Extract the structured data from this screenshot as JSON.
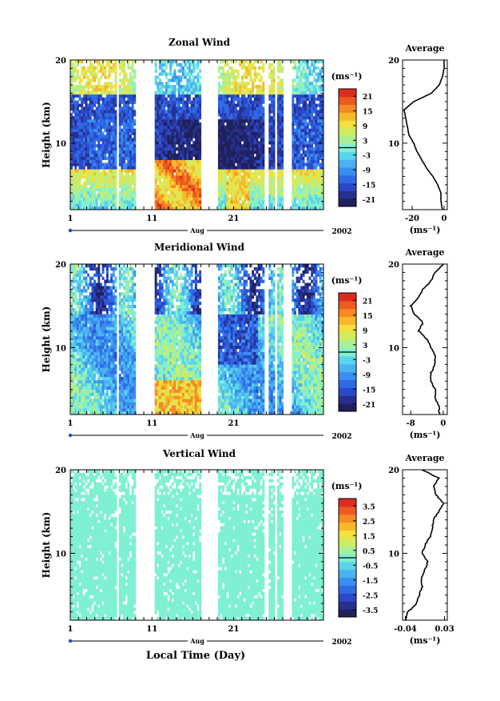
{
  "common": {
    "x_ticks": [
      "1",
      "11",
      "21"
    ],
    "month_label": "Aug",
    "year_label": "2002",
    "height_ticks": [
      "20",
      "10"
    ],
    "ylabel": "Height (km)",
    "unit_label": "(ms⁻¹)",
    "avg_title": "Average",
    "xlabel_bottom": "Local Time (Day)"
  },
  "colors": {
    "colormap": [
      "#20205a",
      "#26308f",
      "#2a48c8",
      "#2e6ae6",
      "#3a8ef0",
      "#4ab2f0",
      "#5ad4ec",
      "#7ff0d2",
      "#a8f09a",
      "#d0ec60",
      "#f0e040",
      "#f8b82c",
      "#f48a24",
      "#ec5a20",
      "#dc2c20"
    ],
    "panel_background": "#ffffff",
    "contour": "#000000"
  },
  "chart_data": [
    {
      "type": "heatmap",
      "title": "Zonal Wind",
      "x": {
        "label": "Local Time (Day)",
        "range": [
          1,
          32
        ],
        "ticks": [
          1,
          11,
          21
        ]
      },
      "y": {
        "label": "Height (km)",
        "range": [
          2,
          20
        ],
        "ticks": [
          10,
          20
        ]
      },
      "colorbar": {
        "unit": "(ms⁻¹)",
        "ticks": [
          "21",
          "15",
          "9",
          "3",
          "-3",
          "-9",
          "-15",
          "-21"
        ],
        "range": [
          -24,
          24
        ]
      },
      "data_gaps_days": [
        [
          6.6,
          6.9
        ],
        [
          9.0,
          11.4
        ],
        [
          17.0,
          19.2
        ],
        [
          24.8,
          25.2
        ],
        [
          26.0,
          26.4
        ],
        [
          27.2,
          28.0
        ]
      ],
      "average_profile": {
        "title": "Average",
        "xlabel": "(ms⁻¹)",
        "x_ticks": [
          "-20",
          "0"
        ],
        "x_range": [
          -26,
          2
        ],
        "height": [
          2,
          3,
          4,
          5,
          6,
          7,
          8,
          9,
          10,
          11,
          12,
          13,
          14,
          15,
          16,
          17,
          18,
          19,
          20
        ],
        "value": [
          -1,
          -2,
          -2,
          -4,
          -7,
          -11,
          -14,
          -17,
          -19,
          -22,
          -23,
          -24,
          -25,
          -19,
          -8,
          -3,
          -1,
          0,
          0
        ]
      }
    },
    {
      "type": "heatmap",
      "title": "Meridional Wind",
      "x": {
        "label": "Local Time (Day)",
        "range": [
          1,
          32
        ],
        "ticks": [
          1,
          11,
          21
        ]
      },
      "y": {
        "label": "Height (km)",
        "range": [
          2,
          20
        ],
        "ticks": [
          10,
          20
        ]
      },
      "colorbar": {
        "unit": "(ms⁻¹)",
        "ticks": [
          "21",
          "15",
          "9",
          "3",
          "-3",
          "-9",
          "-15",
          "-21"
        ],
        "range": [
          -24,
          24
        ]
      },
      "data_gaps_days": [
        [
          6.6,
          6.9
        ],
        [
          9.0,
          11.4
        ],
        [
          17.0,
          19.2
        ],
        [
          24.8,
          25.2
        ],
        [
          26.0,
          26.4
        ],
        [
          27.2,
          28.0
        ]
      ],
      "average_profile": {
        "title": "Average",
        "xlabel": "(ms⁻¹)",
        "x_ticks": [
          "-8",
          "0"
        ],
        "x_range": [
          -10,
          1
        ],
        "height": [
          2,
          3,
          4,
          5,
          6,
          7,
          8,
          9,
          10,
          11,
          12,
          13,
          14,
          15,
          16,
          17,
          18,
          19,
          20
        ],
        "value": [
          -1,
          -1,
          -2,
          -2,
          -3,
          -3,
          -2,
          -2,
          -3,
          -4,
          -6,
          -5,
          -7,
          -8,
          -6,
          -5,
          -3,
          -2,
          0
        ]
      }
    },
    {
      "type": "heatmap",
      "title": "Vertical Wind",
      "x": {
        "label": "Local Time (Day)",
        "range": [
          1,
          32
        ],
        "ticks": [
          1,
          11,
          21
        ]
      },
      "y": {
        "label": "Height (km)",
        "range": [
          2,
          20
        ],
        "ticks": [
          10,
          20
        ]
      },
      "colorbar": {
        "unit": "(ms⁻¹)",
        "ticks": [
          "3.5",
          "2.5",
          "1.5",
          "0.5",
          "-0.5",
          "-1.5",
          "-2.5",
          "-3.5"
        ],
        "range": [
          -4,
          4
        ]
      },
      "data_gaps_days": [
        [
          6.6,
          6.9
        ],
        [
          9.0,
          11.4
        ],
        [
          17.0,
          19.2
        ],
        [
          24.8,
          25.2
        ],
        [
          26.0,
          26.4
        ],
        [
          27.2,
          28.0
        ]
      ],
      "average_profile": {
        "title": "Average",
        "xlabel": "(ms⁻¹)",
        "x_ticks": [
          "-0.04",
          "0.03"
        ],
        "x_range": [
          -0.045,
          0.035
        ],
        "height": [
          2,
          3,
          4,
          5,
          6,
          7,
          8,
          9,
          10,
          11,
          12,
          13,
          14,
          15,
          16,
          17,
          18,
          19,
          20
        ],
        "value": [
          -0.04,
          -0.035,
          -0.02,
          -0.015,
          -0.01,
          -0.012,
          -0.005,
          0.0,
          -0.01,
          -0.005,
          0.005,
          0.008,
          0.01,
          0.02,
          0.028,
          0.015,
          0.01,
          0.02,
          -0.01
        ]
      }
    }
  ]
}
